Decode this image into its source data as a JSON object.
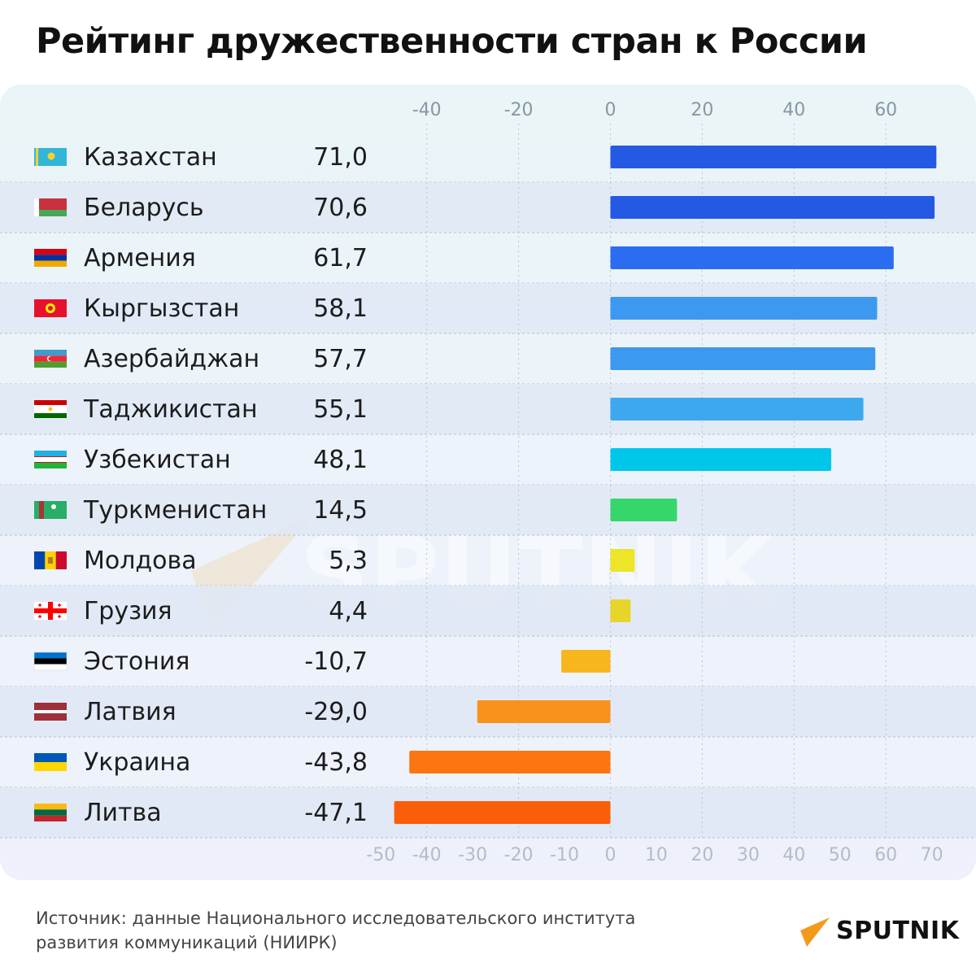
{
  "title": "Рейтинг дружественности стран к России",
  "source": "Источник: данные Национального исследовательского института развития коммуникаций (НИИРК)",
  "logo": "SPUTNIK",
  "watermark": "SPUTNIK",
  "chart_data": {
    "type": "bar",
    "orientation": "horizontal",
    "title": "Рейтинг дружественности стран к России",
    "xlim": [
      -50,
      75
    ],
    "top_ticks": [
      "-40",
      "-20",
      "0",
      "20",
      "40",
      "60"
    ],
    "bottom_ticks": [
      "-50",
      "-40",
      "-30",
      "-20",
      "-10",
      "0",
      "10",
      "20",
      "30",
      "40",
      "50",
      "60",
      "70"
    ],
    "grid": true,
    "categories": [
      "Казахстан",
      "Беларусь",
      "Армения",
      "Кыргызстан",
      "Азербайджан",
      "Таджикистан",
      "Узбекистан",
      "Туркменистан",
      "Молдова",
      "Грузия",
      "Эстония",
      "Латвия",
      "Украина",
      "Литва"
    ],
    "values": [
      71.0,
      70.6,
      61.7,
      58.1,
      57.7,
      55.1,
      48.1,
      14.5,
      5.3,
      4.4,
      -10.7,
      -29.0,
      -43.8,
      -47.1
    ],
    "value_labels": [
      "71,0",
      "70,6",
      "61,7",
      "58,1",
      "57,7",
      "55,1",
      "48,1",
      "14,5",
      "5,3",
      "4,4",
      "-10,7",
      "-29,0",
      "-43,8",
      "-47,1"
    ],
    "bar_colors": [
      "#2359e3",
      "#2359e3",
      "#2b6df0",
      "#3c99ef",
      "#3c99ef",
      "#3da8ee",
      "#00c6ea",
      "#35d76b",
      "#ece528",
      "#e7d52a",
      "#f7b61e",
      "#f8921c",
      "#fb7511",
      "#fb5e0a"
    ],
    "flags": [
      "kazakhstan-flag",
      "belarus-flag",
      "armenia-flag",
      "kyrgyzstan-flag",
      "azerbaijan-flag",
      "tajikistan-flag",
      "uzbekistan-flag",
      "turkmenistan-flag",
      "moldova-flag",
      "georgia-flag",
      "estonia-flag",
      "latvia-flag",
      "ukraine-flag",
      "lithuania-flag"
    ]
  }
}
